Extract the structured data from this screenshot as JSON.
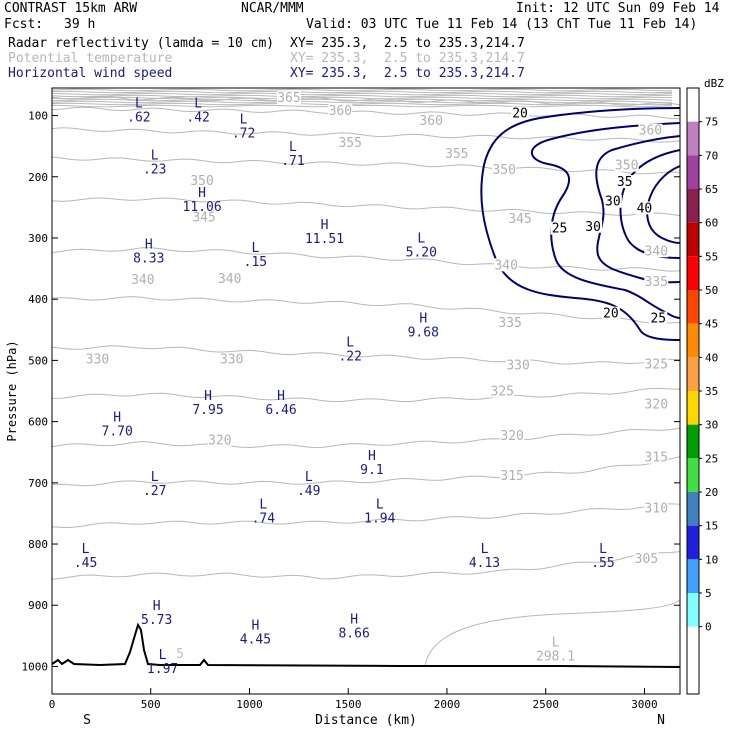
{
  "header": {
    "model": "CONTRAST 15km ARW",
    "org": "NCAR/MMM",
    "init": "Init: 12 UTC Sun 09 Feb 14",
    "fcst_label": "Fcst:",
    "fcst_value": "39 h",
    "valid": "Valid: 03 UTC Tue 11 Feb 14 (13 ChT Tue 11 Feb 14)",
    "fields": [
      {
        "name": "Radar reflectivity (lamda = 10 cm)",
        "xy": "XY= 235.3,  2.5 to 235.3,214.7",
        "color": "#000000"
      },
      {
        "name": "Potential temperature",
        "xy": "XY= 235.3,  2.5 to 235.3,214.7",
        "color": "#b8b8b8"
      },
      {
        "name": "Horizontal wind speed",
        "xy": "XY= 235.3,  2.5 to 235.3,214.7",
        "color": "#1a1a8c"
      }
    ]
  },
  "colorbar": {
    "unit": "dBZ",
    "levels": [
      "75",
      "70",
      "65",
      "60",
      "55",
      "50",
      "45",
      "40",
      "35",
      "30",
      "25",
      "20",
      "15",
      "10",
      "5",
      "0"
    ],
    "colors": [
      "#c080c0",
      "#a040a0",
      "#8b2050",
      "#c00000",
      "#ff0000",
      "#ff4500",
      "#ff8c00",
      "#ffa040",
      "#ffd700",
      "#00a000",
      "#40e040",
      "#4080c0",
      "#2020e0",
      "#40a0ff",
      "#80ffff"
    ]
  },
  "chart_data": {
    "type": "cross-section",
    "xlabel": "Distance (km)",
    "ylabel": "Pressure (hPa)",
    "xlim": [
      0,
      3180
    ],
    "ylim": [
      1045,
      55
    ],
    "x_ticks": [
      0,
      500,
      1000,
      1500,
      2000,
      2500,
      3000
    ],
    "y_ticks": [
      100,
      200,
      300,
      400,
      500,
      600,
      700,
      800,
      900,
      1000
    ],
    "left_end": "S",
    "right_end": "N",
    "theta_contours": {
      "color": "#b8b8b8",
      "lines": [
        {
          "level": "365",
          "p": [
            70,
            72,
            74,
            73,
            76,
            78,
            80,
            82
          ]
        },
        {
          "level": "360",
          "p": [
            88,
            90,
            92,
            94,
            96,
            98,
            100,
            103
          ]
        },
        {
          "level": "355",
          "p": [
            122,
            125,
            128,
            130,
            133,
            135,
            138,
            142
          ]
        },
        {
          "level": "350",
          "p": [
            170,
            172,
            175,
            178,
            180,
            185,
            190,
            195
          ]
        },
        {
          "level": "345",
          "p": [
            238,
            236,
            240,
            245,
            250,
            255,
            260,
            262
          ]
        },
        {
          "level": "340",
          "p": [
            322,
            318,
            322,
            330,
            335,
            345,
            350,
            352
          ]
        },
        {
          "level": "335",
          "p": [
            400,
            398,
            402,
            405,
            410,
            420,
            430,
            440
          ]
        },
        {
          "level": "330",
          "p": [
            480,
            478,
            485,
            490,
            495,
            500,
            505,
            500
          ]
        },
        {
          "level": "325",
          "p": [
            560,
            555,
            560,
            565,
            565,
            560,
            555,
            545
          ]
        },
        {
          "level": "320",
          "p": [
            640,
            635,
            640,
            640,
            635,
            630,
            620,
            610
          ]
        },
        {
          "level": "315",
          "p": [
            705,
            698,
            700,
            700,
            695,
            690,
            680,
            660
          ]
        },
        {
          "level": "310",
          "p": [
            772,
            765,
            765,
            765,
            760,
            755,
            745,
            735
          ]
        },
        {
          "level": "305",
          "p": [
            855,
            850,
            850,
            855,
            850,
            845,
            830,
            810
          ]
        }
      ],
      "labels": [
        {
          "text": "365",
          "x": 1200,
          "p": 75
        },
        {
          "text": "360",
          "x": 1460,
          "p": 96
        },
        {
          "text": "360",
          "x": 1920,
          "p": 112
        },
        {
          "text": "360",
          "x": 3030,
          "p": 128
        },
        {
          "text": "355",
          "x": 1510,
          "p": 148
        },
        {
          "text": "355",
          "x": 2050,
          "p": 166
        },
        {
          "text": "350",
          "x": 2290,
          "p": 192
        },
        {
          "text": "350",
          "x": 2910,
          "p": 185
        },
        {
          "text": "350",
          "x": 760,
          "p": 210
        },
        {
          "text": "345",
          "x": 770,
          "p": 270
        },
        {
          "text": "345",
          "x": 2370,
          "p": 272
        },
        {
          "text": "340",
          "x": 460,
          "p": 372
        },
        {
          "text": "340",
          "x": 900,
          "p": 370
        },
        {
          "text": "340",
          "x": 2300,
          "p": 348
        },
        {
          "text": "340",
          "x": 3060,
          "p": 325
        },
        {
          "text": "335",
          "x": 3060,
          "p": 375
        },
        {
          "text": "335",
          "x": 2320,
          "p": 442
        },
        {
          "text": "330",
          "x": 230,
          "p": 502
        },
        {
          "text": "330",
          "x": 910,
          "p": 502
        },
        {
          "text": "330",
          "x": 2360,
          "p": 512
        },
        {
          "text": "325",
          "x": 3060,
          "p": 510
        },
        {
          "text": "325",
          "x": 2280,
          "p": 554
        },
        {
          "text": "320",
          "x": 3060,
          "p": 575
        },
        {
          "text": "320",
          "x": 850,
          "p": 634
        },
        {
          "text": "320",
          "x": 2330,
          "p": 627
        },
        {
          "text": "315",
          "x": 3060,
          "p": 662
        },
        {
          "text": "315",
          "x": 2330,
          "p": 692
        },
        {
          "text": "310",
          "x": 3060,
          "p": 745
        },
        {
          "text": "305",
          "x": 3010,
          "p": 828
        }
      ]
    },
    "wind_contours": {
      "color": "#000070",
      "levels": [
        "20",
        "25",
        "30",
        "35",
        "40"
      ],
      "labels": [
        {
          "text": "20",
          "x": 2370,
          "p": 100
        },
        {
          "text": "20",
          "x": 2830,
          "p": 427
        },
        {
          "text": "25",
          "x": 2570,
          "p": 288
        },
        {
          "text": "25",
          "x": 3070,
          "p": 435
        },
        {
          "text": "30",
          "x": 2740,
          "p": 285
        },
        {
          "text": "30",
          "x": 2840,
          "p": 244
        },
        {
          "text": "35",
          "x": 2900,
          "p": 212
        },
        {
          "text": "40",
          "x": 3000,
          "p": 255
        }
      ]
    },
    "hl_labels": [
      {
        "letter": "L",
        "value": ".62",
        "x": 440,
        "p": 87,
        "gray": false
      },
      {
        "letter": "L",
        "value": ".42",
        "x": 740,
        "p": 87,
        "gray": false
      },
      {
        "letter": "L",
        "value": ".72",
        "x": 970,
        "p": 113,
        "gray": false
      },
      {
        "letter": "L",
        "value": ".71",
        "x": 1220,
        "p": 158,
        "gray": false
      },
      {
        "letter": "L",
        "value": ".23",
        "x": 520,
        "p": 172,
        "gray": false
      },
      {
        "letter": "H",
        "value": "11.06",
        "x": 760,
        "p": 233,
        "gray": false
      },
      {
        "letter": "H",
        "value": "11.51",
        "x": 1380,
        "p": 285,
        "gray": false
      },
      {
        "letter": "L",
        "value": "5.20",
        "x": 1870,
        "p": 307,
        "gray": false
      },
      {
        "letter": "H",
        "value": "8.33",
        "x": 490,
        "p": 317,
        "gray": false
      },
      {
        "letter": "L",
        "value": ".15",
        "x": 1030,
        "p": 323,
        "gray": false
      },
      {
        "letter": "H",
        "value": "9.68",
        "x": 1880,
        "p": 438,
        "gray": false
      },
      {
        "letter": "L",
        "value": ".22",
        "x": 1510,
        "p": 477,
        "gray": false
      },
      {
        "letter": "H",
        "value": "7.95",
        "x": 790,
        "p": 565,
        "gray": false
      },
      {
        "letter": "H",
        "value": "6.46",
        "x": 1160,
        "p": 565,
        "gray": false
      },
      {
        "letter": "H",
        "value": "7.70",
        "x": 330,
        "p": 600,
        "gray": false
      },
      {
        "letter": "H",
        "value": "9.1",
        "x": 1620,
        "p": 663,
        "gray": false
      },
      {
        "letter": "L",
        "value": ".27",
        "x": 520,
        "p": 697,
        "gray": false
      },
      {
        "letter": "L",
        "value": ".49",
        "x": 1300,
        "p": 697,
        "gray": false
      },
      {
        "letter": "L",
        "value": ".74",
        "x": 1070,
        "p": 742,
        "gray": false
      },
      {
        "letter": "L",
        "value": "1.94",
        "x": 1660,
        "p": 742,
        "gray": false
      },
      {
        "letter": "L",
        "value": ".45",
        "x": 170,
        "p": 815,
        "gray": false
      },
      {
        "letter": "L",
        "value": "4.13",
        "x": 2190,
        "p": 815,
        "gray": false
      },
      {
        "letter": "L",
        "value": ".55",
        "x": 2790,
        "p": 815,
        "gray": false
      },
      {
        "letter": "H",
        "value": "5.73",
        "x": 530,
        "p": 908,
        "gray": false
      },
      {
        "letter": "H",
        "value": "4.45",
        "x": 1030,
        "p": 940,
        "gray": false
      },
      {
        "letter": "H",
        "value": "8.66",
        "x": 1530,
        "p": 930,
        "gray": false
      },
      {
        "letter": "L",
        "value": "1.97",
        "x": 560,
        "p": 988,
        "gray": false
      },
      {
        "letter": "L",
        "value": "298.1",
        "x": 2550,
        "p": 967,
        "gray": true
      }
    ],
    "terrain_label": "5"
  }
}
